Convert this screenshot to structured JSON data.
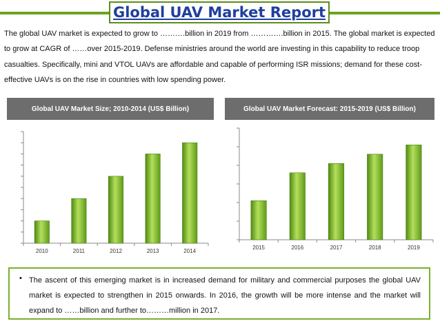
{
  "title": "Global UAV Market Report",
  "intro": "The global UAV market is expected to grow to ……….billion in 2019 from ………….billion in 2015. The global market is expected to grow at CAGR of ……over 2015-2019. Defense ministries around the world are investing in this capability to reduce troop casualties. Specifically, mini and VTOL UAVs are affordable and capable of performing ISR missions; demand for these cost-effective UAVs is on the rise in countries with low spending power.",
  "chart_data": [
    {
      "type": "bar",
      "title": "Global UAV Market Size; 2010-2014 (US$ Billion)",
      "categories": [
        "2010",
        "2011",
        "2012",
        "2013",
        "2014"
      ],
      "values": [
        2,
        4,
        6,
        8,
        9
      ],
      "ylim": [
        0,
        10
      ],
      "yticks": 10,
      "xlabel": "",
      "ylabel": "",
      "bar_color": "#7ab32e"
    },
    {
      "type": "bar",
      "title": "Global UAV Market Forecast: 2015-2019 (US$ Billion)",
      "categories": [
        "2015",
        "2016",
        "2017",
        "2018",
        "2019"
      ],
      "values": [
        2.1,
        3.6,
        4.1,
        4.6,
        5.1
      ],
      "ylim": [
        0,
        6
      ],
      "yticks": 6,
      "xlabel": "",
      "ylabel": "",
      "bar_color": "#7ab32e"
    }
  ],
  "bullet_marker": "•",
  "bottom_text": "The ascent of this emerging market is in increased demand for military and commercial purposes the global UAV market is expected to strengthen in 2015 onwards. In 2016, the growth will be more intense and the market will expand to ……billion and further to………million in 2017."
}
